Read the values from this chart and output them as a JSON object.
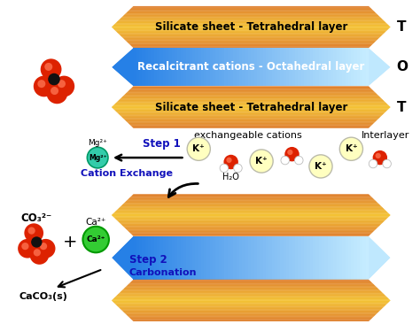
{
  "bg_color": "#ffffff",
  "orange_edge": "#CC5500",
  "orange_center": "#F0A800",
  "blue_left": "#3388DD",
  "blue_right": "#C8EEFF",
  "layer1_label": "Silicate sheet - Tetrahedral layer",
  "layer2_label": "Recalcitrant cations - Octahedral layer",
  "layer3_label": "Silicate sheet - Tetrahedral layer",
  "T_label": "T",
  "O_label": "O",
  "label_top1": "exchangeable cations",
  "label_interlayer": "Interlayer",
  "step1_label": "Step 1",
  "cation_exchange_label": "Cation Exchange",
  "h2o_label": "H₂O",
  "mg_label": "Mg²⁺",
  "step2_label": "Step 2",
  "carbonation_label": "Carbonation",
  "co3_label": "CO₃²⁻",
  "ca_label": "Ca²⁺",
  "caco3_label": "CaCO₃(s)",
  "red_sphere": "#DD2200",
  "red_hi": "#FF7755",
  "black_center": "#111111",
  "mg_green": "#33CCAA",
  "ca_green": "#33CC33",
  "blue_text": "#1111BB",
  "white": "#FFFFFF"
}
